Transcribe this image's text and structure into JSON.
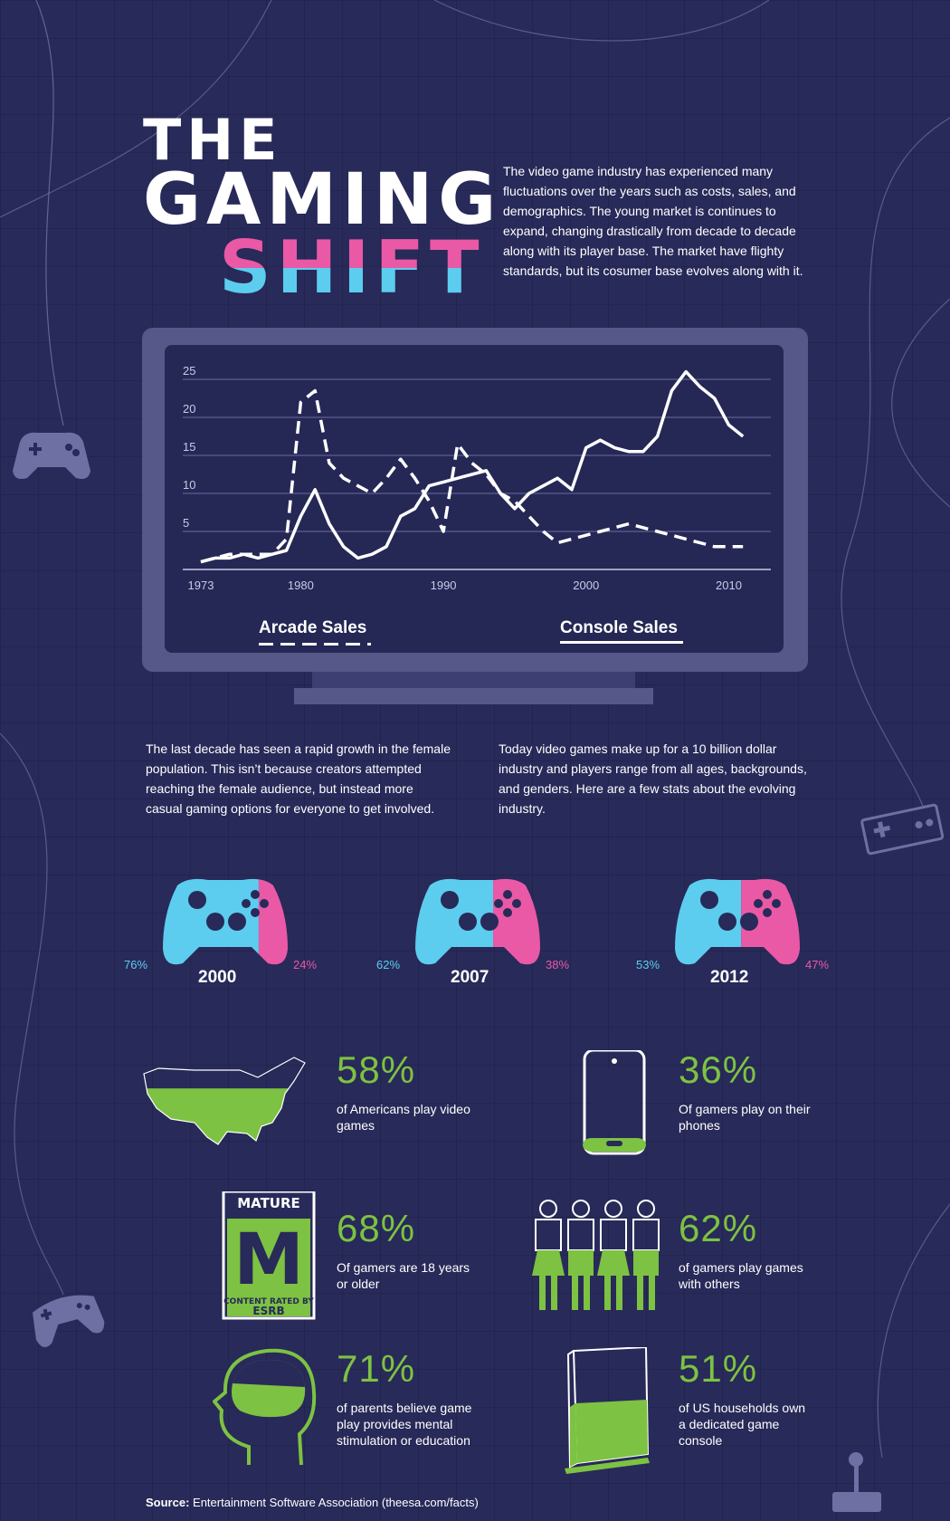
{
  "title": {
    "line1": "THE",
    "line2": "GAMING",
    "line3": "SHIFT"
  },
  "intro": "The video game industry has experienced many fluctuations over the years such as costs, sales, and demographics. The young market is continues to expand, changing drastically from decade to decade along with its player base. The market have flighty standards, but its cosumer base evolves along with it.",
  "colors": {
    "background": "#282a59",
    "blue": "#5ccdef",
    "pink": "#ea59a6",
    "green": "#7dc242",
    "monitor": "#56588a"
  },
  "chart_data": {
    "type": "line",
    "ylim": [
      0,
      25
    ],
    "xlim": [
      1973,
      2012
    ],
    "y_ticks": [
      "5",
      "10",
      "15",
      "20",
      "25"
    ],
    "y_tick_values": [
      5,
      10,
      15,
      20,
      25
    ],
    "x_ticks": [
      "1973",
      "1980",
      "1990",
      "2000",
      "2010"
    ],
    "x_tick_values": [
      1973,
      1980,
      1990,
      2000,
      2010
    ],
    "grid": true,
    "legend_position": "bottom",
    "series": [
      {
        "name": "Arcade Sales",
        "style": "dashed",
        "x": [
          1973,
          1975,
          1976,
          1977,
          1978,
          1979,
          1980,
          1981,
          1982,
          1983,
          1984,
          1985,
          1986,
          1987,
          1988,
          1989,
          1990,
          1991,
          1992,
          1993,
          1994,
          1995,
          1996,
          1997,
          1998,
          1999,
          2000,
          2001,
          2002,
          2003,
          2004,
          2005,
          2006,
          2007,
          2008,
          2009,
          2010,
          2011
        ],
        "y": [
          1,
          2,
          2,
          2,
          2,
          4,
          22,
          23.5,
          14,
          12,
          11,
          10,
          12,
          14.5,
          12,
          9,
          5,
          16.5,
          14,
          12.5,
          10,
          9,
          7,
          5,
          3.5,
          4,
          4.5,
          5,
          5.5,
          6,
          5.5,
          5,
          4.5,
          4,
          3.5,
          3,
          3,
          3
        ]
      },
      {
        "name": "Console Sales",
        "style": "solid",
        "x": [
          1973,
          1974,
          1975,
          1976,
          1977,
          1978,
          1979,
          1980,
          1981,
          1982,
          1983,
          1984,
          1985,
          1986,
          1987,
          1988,
          1989,
          1990,
          1991,
          1992,
          1993,
          1994,
          1995,
          1996,
          1997,
          1998,
          1999,
          2000,
          2001,
          2002,
          2003,
          2004,
          2005,
          2006,
          2007,
          2008,
          2009,
          2010,
          2011
        ],
        "y": [
          1,
          1.5,
          1.5,
          2,
          1.5,
          2,
          2.5,
          7,
          10.5,
          6,
          3,
          1.5,
          2,
          3,
          7,
          8,
          11,
          11.5,
          12,
          12.5,
          13,
          10,
          8,
          10,
          11,
          12,
          10.5,
          16,
          17,
          16,
          15.5,
          15.5,
          17.5,
          23.5,
          26,
          24,
          22.5,
          19,
          17.5
        ]
      }
    ]
  },
  "legend": {
    "arcade": "Arcade Sales",
    "console": "Console Sales"
  },
  "para_left": "The last decade has seen a rapid growth in the female population. This isn’t because creators attempted reaching the female audience, but instead more casual gaming options for everyone to get involved.",
  "para_right": "Today video games make up for a 10 billion dollar industry and players range from all ages, backgrounds, and genders. Here are a few stats about the evolving industry.",
  "controllers": [
    {
      "year": "2000",
      "male": "76%",
      "female": "24%",
      "male_frac": 0.76
    },
    {
      "year": "2007",
      "male": "62%",
      "female": "38%",
      "male_frac": 0.62
    },
    {
      "year": "2012",
      "male": "53%",
      "female": "47%",
      "male_frac": 0.53
    }
  ],
  "stats": [
    {
      "value": "58%",
      "desc": "of Americans play video games",
      "icon": "us-map-icon",
      "fill": 0.58
    },
    {
      "value": "36%",
      "desc": "Of gamers play on their phones",
      "icon": "phone-icon",
      "fill": 0.36
    },
    {
      "value": "68%",
      "desc": "Of gamers are 18 years or older",
      "icon": "esrb-mature-icon"
    },
    {
      "value": "62%",
      "desc": "of gamers play games with others",
      "icon": "people-icon",
      "fill": 0.62
    },
    {
      "value": "71%",
      "desc": "of parents believe game play provides mental stimulation or education",
      "icon": "head-brain-icon",
      "fill": 0.71
    },
    {
      "value": "51%",
      "desc": "of US households own a dedicated game console",
      "icon": "console-icon",
      "fill": 0.51
    }
  ],
  "esrb": {
    "top": "MATURE",
    "letter": "M",
    "line1": "CONTENT RATED BY",
    "line2": "ESRB"
  },
  "source": {
    "label": "Source:",
    "text": "Entertainment Software Association (theesa.com/facts)"
  }
}
